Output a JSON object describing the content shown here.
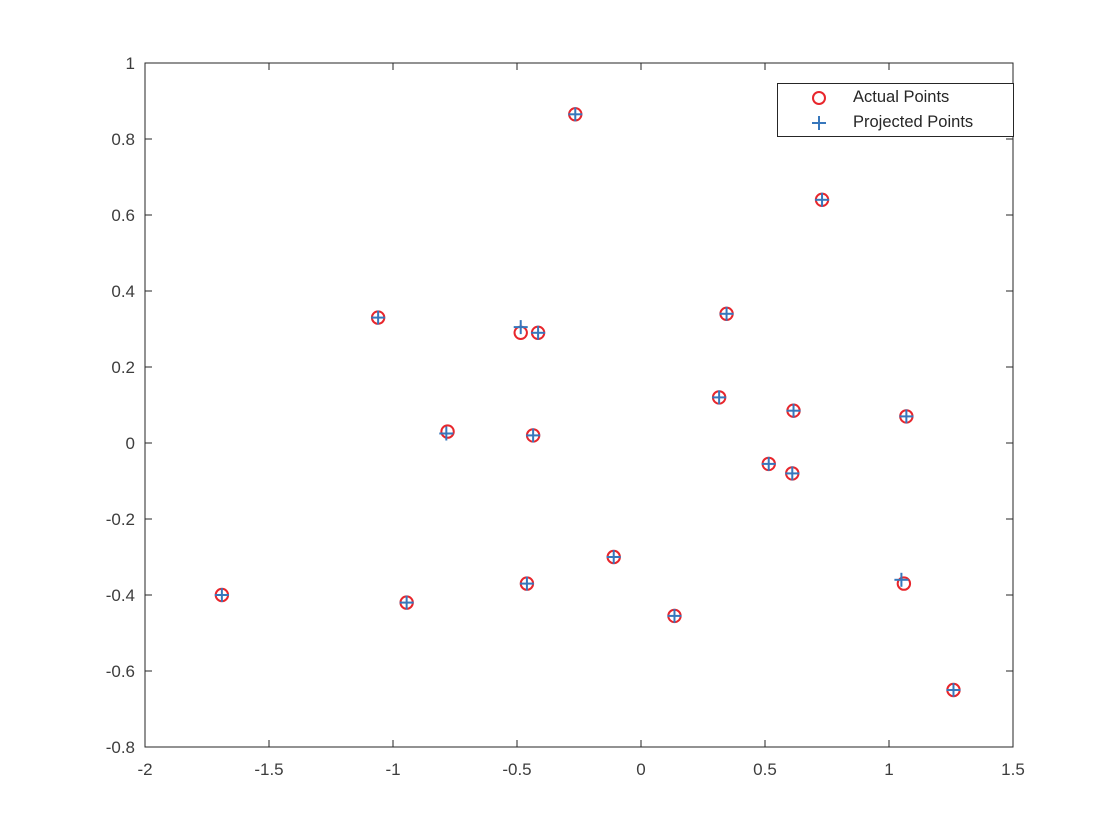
{
  "figure": {
    "background_color": "#ffffff",
    "axis_color": "#262626",
    "tick_label_color": "#3d3d3d"
  },
  "legend": {
    "items": [
      {
        "label": "Actual Points",
        "marker": "circle",
        "color": "#e8262c"
      },
      {
        "label": "Projected Points",
        "marker": "plus",
        "color": "#3777bc"
      }
    ]
  },
  "chart_data": {
    "type": "scatter",
    "title": "",
    "xlabel": "",
    "ylabel": "",
    "xlim": [
      -2,
      1.5
    ],
    "ylim": [
      -0.8,
      1
    ],
    "x_ticks": [
      -2,
      -1.5,
      -1,
      -0.5,
      0,
      0.5,
      1,
      1.5
    ],
    "x_tick_labels": [
      "-2",
      "-1.5",
      "-1",
      "-0.5",
      "0",
      "0.5",
      "1",
      "1.5"
    ],
    "y_ticks": [
      -0.8,
      -0.6,
      -0.4,
      -0.2,
      0,
      0.2,
      0.4,
      0.6,
      0.8,
      1
    ],
    "y_tick_labels": [
      "-0.8",
      "-0.6",
      "-0.4",
      "-0.2",
      "0",
      "0.2",
      "0.4",
      "0.6",
      "0.8",
      "1"
    ],
    "grid": false,
    "box": true,
    "legend_position": "top-right-inside",
    "series": [
      {
        "name": "Actual Points",
        "marker": "circle",
        "color": "#e8262c",
        "points": [
          [
            -1.69,
            -0.4
          ],
          [
            -1.06,
            0.33
          ],
          [
            -0.945,
            -0.42
          ],
          [
            -0.78,
            0.03
          ],
          [
            -0.485,
            0.29
          ],
          [
            -0.46,
            -0.37
          ],
          [
            -0.435,
            0.02
          ],
          [
            -0.415,
            0.29
          ],
          [
            -0.265,
            0.865
          ],
          [
            -0.11,
            -0.3
          ],
          [
            0.135,
            -0.455
          ],
          [
            0.315,
            0.12
          ],
          [
            0.345,
            0.34
          ],
          [
            0.515,
            -0.055
          ],
          [
            0.61,
            -0.08
          ],
          [
            0.615,
            0.085
          ],
          [
            0.73,
            0.64
          ],
          [
            1.06,
            -0.37
          ],
          [
            1.07,
            0.07
          ],
          [
            1.26,
            -0.65
          ]
        ]
      },
      {
        "name": "Projected Points",
        "marker": "plus",
        "color": "#3777bc",
        "points": [
          [
            -1.69,
            -0.4
          ],
          [
            -1.06,
            0.33
          ],
          [
            -0.945,
            -0.42
          ],
          [
            -0.785,
            0.025
          ],
          [
            -0.485,
            0.305
          ],
          [
            -0.46,
            -0.37
          ],
          [
            -0.435,
            0.02
          ],
          [
            -0.415,
            0.29
          ],
          [
            -0.265,
            0.865
          ],
          [
            -0.11,
            -0.3
          ],
          [
            0.135,
            -0.455
          ],
          [
            0.315,
            0.12
          ],
          [
            0.345,
            0.34
          ],
          [
            0.515,
            -0.055
          ],
          [
            0.61,
            -0.08
          ],
          [
            0.615,
            0.085
          ],
          [
            0.73,
            0.64
          ],
          [
            1.05,
            -0.36
          ],
          [
            1.07,
            0.07
          ],
          [
            1.26,
            -0.65
          ]
        ]
      }
    ]
  }
}
